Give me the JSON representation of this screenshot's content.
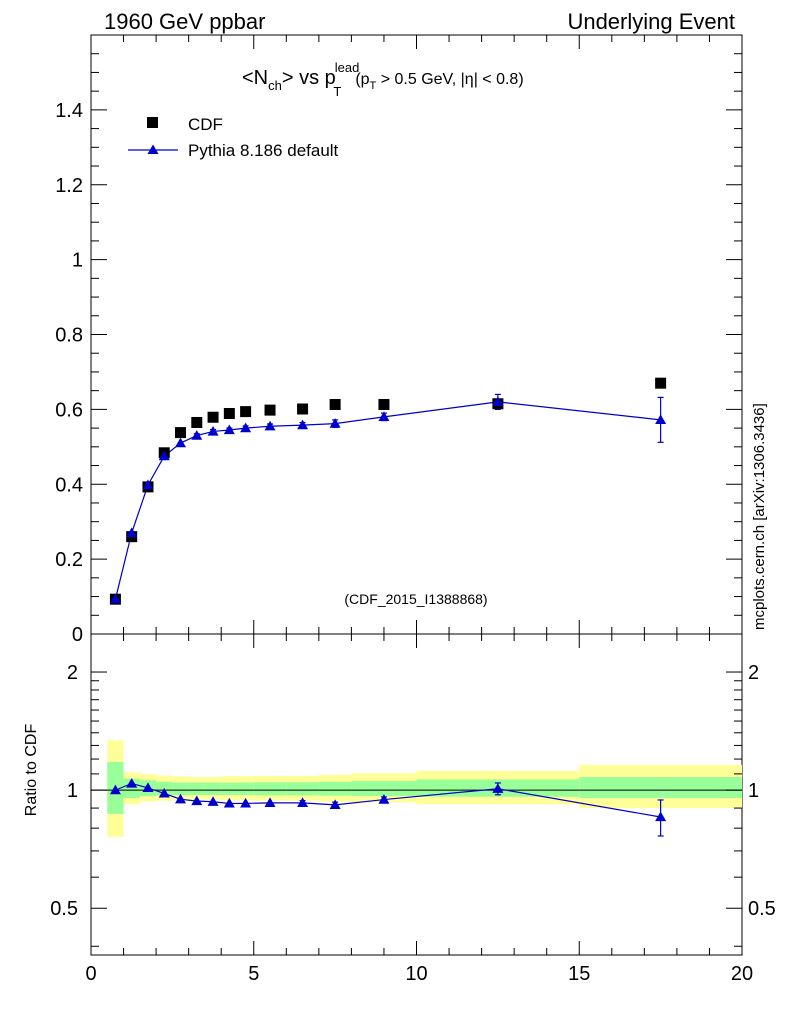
{
  "header": {
    "left": "1960 GeV ppbar",
    "right": "Underlying Event"
  },
  "plot_title": {
    "main": "<N",
    "main_sub": "ch",
    "main_rest": "> vs p",
    "lead_sup": "lead",
    "lead_sub": "T",
    "cut_open": "(p",
    "cut_sub": "T",
    "cut_rest": " > 0.5 GeV, |η| < 0.8)"
  },
  "watermark": "mcplots.cern.ch [arXiv:1306.3436]",
  "analysis_id": "(CDF_2015_I1388868)",
  "legend": {
    "items": [
      {
        "label": "CDF",
        "marker": "square",
        "color": "#000000"
      },
      {
        "label": "Pythia 8.186 default",
        "marker": "triangle",
        "color": "#0000cc"
      }
    ]
  },
  "colors": {
    "mc": "#0000cc",
    "data": "#000000",
    "band_inner": "#99ff99",
    "band_outer": "#ffff99"
  },
  "chart_data": [
    {
      "type": "scatter",
      "panel": "main",
      "xlim": [
        0,
        20
      ],
      "ylim": [
        0,
        1.6
      ],
      "y_ticks": [
        0,
        0.2,
        0.4,
        0.6,
        0.8,
        1,
        1.2,
        1.4
      ],
      "y_tick_labels": [
        "0",
        "0.2",
        "0.4",
        "0.6",
        "0.8",
        "1",
        "1.2",
        "1.4"
      ],
      "series": [
        {
          "name": "CDF",
          "marker": "square",
          "x": [
            0.75,
            1.25,
            1.75,
            2.25,
            2.75,
            3.25,
            3.75,
            4.25,
            4.75,
            5.5,
            6.5,
            7.5,
            9,
            12.5,
            17.5
          ],
          "y": [
            0.093,
            0.26,
            0.393,
            0.484,
            0.538,
            0.565,
            0.579,
            0.589,
            0.594,
            0.598,
            0.601,
            0.613,
            0.613,
            0.615,
            0.67
          ]
        },
        {
          "name": "Pythia 8.186 default",
          "marker": "triangle",
          "x": [
            0.75,
            1.25,
            1.75,
            2.25,
            2.75,
            3.25,
            3.75,
            4.25,
            4.75,
            5.5,
            6.5,
            7.5,
            9,
            12.5,
            17.5
          ],
          "y": [
            0.093,
            0.27,
            0.398,
            0.475,
            0.51,
            0.53,
            0.541,
            0.545,
            0.55,
            0.555,
            0.558,
            0.562,
            0.58,
            0.62,
            0.572
          ],
          "yerr": [
            0.004,
            0.004,
            0.004,
            0.004,
            0.004,
            0.005,
            0.005,
            0.005,
            0.006,
            0.006,
            0.007,
            0.01,
            0.01,
            0.02,
            0.06
          ]
        }
      ]
    },
    {
      "type": "line",
      "panel": "ratio",
      "xlabel": "",
      "ylabel": "Ratio to CDF",
      "xlim": [
        0,
        20
      ],
      "ylim": [
        0.38,
        2.5
      ],
      "x_ticks": [
        0,
        5,
        10,
        15,
        20
      ],
      "x_tick_labels": [
        "0",
        "5",
        "10",
        "15",
        "20"
      ],
      "y_ticks": [
        0.5,
        1,
        2
      ],
      "y_tick_labels": [
        "0.5",
        "1",
        "2"
      ],
      "bins": [
        {
          "lo": 0.5,
          "hi": 1.0,
          "inner": [
            0.87,
            1.18
          ],
          "outer": [
            0.76,
            1.34
          ]
        },
        {
          "lo": 1.0,
          "hi": 1.5,
          "inner": [
            0.955,
            1.07
          ],
          "outer": [
            0.92,
            1.11
          ]
        },
        {
          "lo": 1.5,
          "hi": 2.0,
          "inner": [
            0.965,
            1.06
          ],
          "outer": [
            0.935,
            1.1
          ]
        },
        {
          "lo": 2.0,
          "hi": 2.5,
          "inner": [
            0.97,
            1.05
          ],
          "outer": [
            0.94,
            1.09
          ]
        },
        {
          "lo": 2.5,
          "hi": 3.0,
          "inner": [
            0.972,
            1.045
          ],
          "outer": [
            0.945,
            1.085
          ]
        },
        {
          "lo": 3.0,
          "hi": 3.5,
          "inner": [
            0.972,
            1.045
          ],
          "outer": [
            0.945,
            1.08
          ]
        },
        {
          "lo": 3.5,
          "hi": 4.0,
          "inner": [
            0.972,
            1.045
          ],
          "outer": [
            0.945,
            1.08
          ]
        },
        {
          "lo": 4.0,
          "hi": 4.5,
          "inner": [
            0.972,
            1.045
          ],
          "outer": [
            0.942,
            1.085
          ]
        },
        {
          "lo": 4.5,
          "hi": 5.0,
          "inner": [
            0.972,
            1.045
          ],
          "outer": [
            0.942,
            1.085
          ]
        },
        {
          "lo": 5.0,
          "hi": 6.0,
          "inner": [
            0.97,
            1.047
          ],
          "outer": [
            0.94,
            1.087
          ]
        },
        {
          "lo": 6.0,
          "hi": 7.0,
          "inner": [
            0.97,
            1.047
          ],
          "outer": [
            0.94,
            1.087
          ]
        },
        {
          "lo": 7.0,
          "hi": 8.0,
          "inner": [
            0.968,
            1.05
          ],
          "outer": [
            0.935,
            1.095
          ]
        },
        {
          "lo": 8.0,
          "hi": 10.0,
          "inner": [
            0.966,
            1.055
          ],
          "outer": [
            0.93,
            1.105
          ]
        },
        {
          "lo": 10.0,
          "hi": 15.0,
          "inner": [
            0.962,
            1.065
          ],
          "outer": [
            0.92,
            1.12
          ]
        },
        {
          "lo": 15.0,
          "hi": 20.0,
          "inner": [
            0.955,
            1.08
          ],
          "outer": [
            0.9,
            1.16
          ]
        }
      ],
      "series": [
        {
          "name": "Pythia 8.186 default",
          "x": [
            0.75,
            1.25,
            1.75,
            2.25,
            2.75,
            3.25,
            3.75,
            4.25,
            4.75,
            5.5,
            6.5,
            7.5,
            9,
            12.5,
            17.5
          ],
          "y": [
            1.0,
            1.04,
            1.013,
            0.981,
            0.948,
            0.938,
            0.934,
            0.925,
            0.925,
            0.928,
            0.928,
            0.917,
            0.946,
            1.008,
            0.854
          ],
          "yerr": [
            0.01,
            0.01,
            0.01,
            0.01,
            0.01,
            0.01,
            0.01,
            0.01,
            0.01,
            0.01,
            0.012,
            0.015,
            0.015,
            0.035,
            0.09
          ]
        }
      ]
    }
  ]
}
